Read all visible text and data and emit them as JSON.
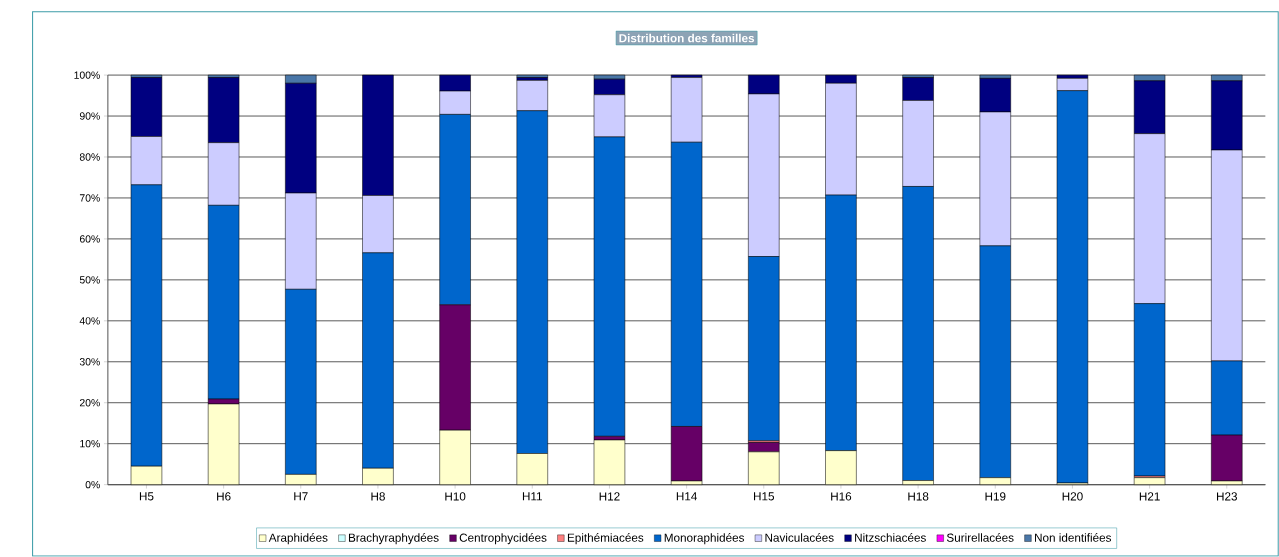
{
  "chart_data": {
    "type": "bar",
    "stacked": true,
    "title": "Distribution des familles",
    "categories": [
      "H5",
      "H6",
      "H7",
      "H8",
      "H10",
      "H11",
      "H12",
      "H14",
      "H15",
      "H16",
      "H18",
      "H19",
      "H20",
      "H21",
      "H23"
    ],
    "series": [
      {
        "name": "Araphidées",
        "color": "#ffffcc",
        "values": [
          4.5,
          19.7,
          2.5,
          4.0,
          13.3,
          7.6,
          10.9,
          0.9,
          8.0,
          8.3,
          1.0,
          1.7,
          0.4,
          1.7,
          0.9
        ]
      },
      {
        "name": "Brachyraphydées",
        "color": "#ccffff",
        "values": [
          0,
          0,
          0,
          0,
          0,
          0,
          0,
          0,
          0,
          0,
          0,
          0,
          0,
          0,
          0
        ]
      },
      {
        "name": "Centrophycidées",
        "color": "#660066",
        "values": [
          0,
          1.2,
          0,
          0,
          30.6,
          0,
          0.9,
          13.3,
          2.3,
          0,
          0,
          0,
          0,
          0,
          11.2
        ]
      },
      {
        "name": "Epithémiacées",
        "color": "#ff8080",
        "values": [
          0,
          0,
          0,
          0,
          0,
          0,
          0,
          0,
          0.4,
          0,
          0,
          0,
          0,
          0.4,
          0
        ]
      },
      {
        "name": "Monoraphidées",
        "color": "#0066cc",
        "values": [
          68.7,
          47.3,
          45.2,
          52.6,
          46.5,
          83.7,
          73.1,
          69.4,
          45.0,
          62.4,
          71.8,
          56.6,
          95.8,
          42.1,
          18.1
        ]
      },
      {
        "name": "Naviculacées",
        "color": "#ccccff",
        "values": [
          11.8,
          15.3,
          23.5,
          14.0,
          5.7,
          7.4,
          10.3,
          15.8,
          39.7,
          27.3,
          21.0,
          32.7,
          3.0,
          41.5,
          51.5
        ]
      },
      {
        "name": "Nitzschiacées",
        "color": "#000080",
        "values": [
          14.4,
          15.9,
          26.8,
          29.4,
          3.9,
          0.7,
          3.8,
          0.6,
          4.6,
          2.0,
          5.6,
          8.2,
          0.8,
          12.9,
          16.9
        ]
      },
      {
        "name": "Surirellacées",
        "color": "#ff00ff",
        "values": [
          0,
          0,
          0,
          0,
          0,
          0,
          0,
          0,
          0,
          0,
          0,
          0,
          0,
          0,
          0
        ]
      },
      {
        "name": "Non identifiées",
        "color": "#4a77a8",
        "values": [
          0.6,
          0.6,
          2.0,
          0,
          0,
          0.6,
          1.0,
          0,
          0,
          0,
          0.6,
          0.8,
          0,
          1.4,
          1.4
        ]
      }
    ],
    "ylim": [
      0,
      100
    ],
    "yticks": [
      {
        "value": 0,
        "label": "0%"
      },
      {
        "value": 10,
        "label": "10%"
      },
      {
        "value": 20,
        "label": "20%"
      },
      {
        "value": 30,
        "label": "30%"
      },
      {
        "value": 40,
        "label": "40%"
      },
      {
        "value": 50,
        "label": "50%"
      },
      {
        "value": 60,
        "label": "60%"
      },
      {
        "value": 70,
        "label": "70%"
      },
      {
        "value": 80,
        "label": "80%"
      },
      {
        "value": 90,
        "label": "90%"
      },
      {
        "value": 100,
        "label": "100%"
      }
    ],
    "grid": "y",
    "legend": "bottom"
  }
}
